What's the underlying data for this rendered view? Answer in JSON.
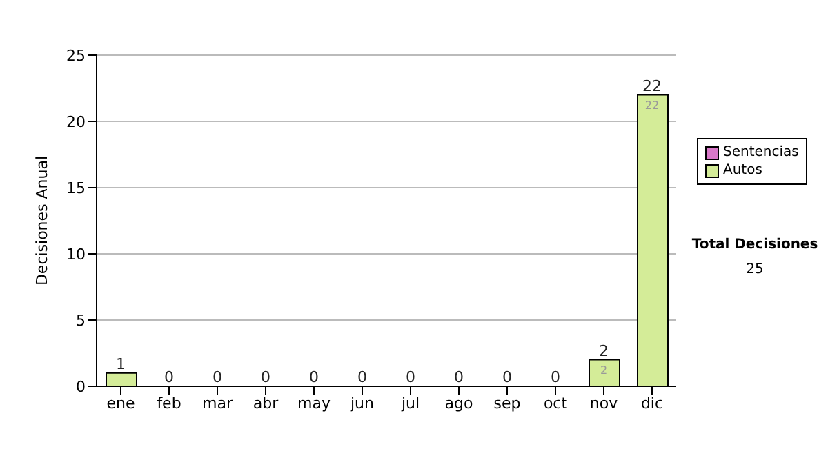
{
  "chart_data": {
    "type": "bar",
    "stacked": true,
    "ylabel": "Decisiones Anual",
    "categories": [
      "ene",
      "feb",
      "mar",
      "abr",
      "may",
      "jun",
      "jul",
      "ago",
      "sep",
      "oct",
      "nov",
      "dic"
    ],
    "series": [
      {
        "name": "Sentencias",
        "color": "#d878c8",
        "values": [
          0,
          0,
          0,
          0,
          0,
          0,
          0,
          0,
          0,
          0,
          0,
          0
        ]
      },
      {
        "name": "Autos",
        "color": "#d4ec98",
        "values": [
          1,
          0,
          0,
          0,
          0,
          0,
          0,
          0,
          0,
          0,
          2,
          22
        ],
        "value_labels": [
          null,
          null,
          null,
          null,
          null,
          null,
          null,
          null,
          null,
          null,
          "2",
          "22"
        ]
      }
    ],
    "totals": [
      "1",
      "0",
      "0",
      "0",
      "0",
      "0",
      "0",
      "0",
      "0",
      "0",
      "2",
      "22"
    ],
    "ylim": [
      0,
      25
    ],
    "yticks": [
      0,
      5,
      10,
      15,
      20,
      25
    ],
    "grid": "y",
    "legend": "right",
    "annotations": [
      "Total Decisiones",
      "25"
    ]
  }
}
